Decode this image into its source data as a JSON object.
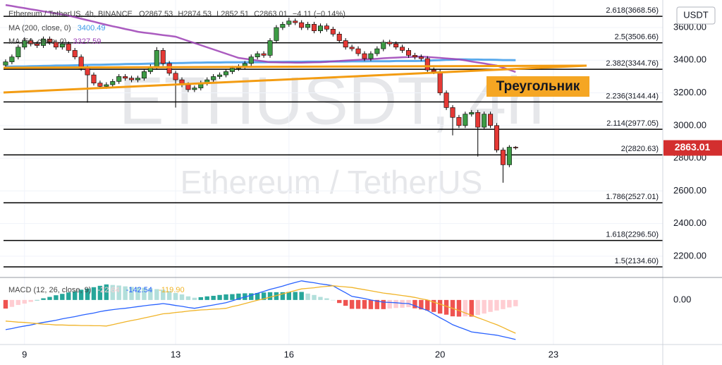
{
  "chart_data": [
    {
      "type": "candlestick",
      "title": "Ethereum / TetherUS, 4h, BINANCE",
      "ohlc_labels": [
        "O2867.53",
        "H2874.53",
        "L2852.51",
        "C2863.01",
        "−4.11 (−0.14%)"
      ],
      "watermark_symbol": "ETHUSDT, 4h",
      "watermark_name": "Ethereum / TetherUS",
      "unit": "USDT",
      "annotation": "Треугольник",
      "up_color": "#3d9b45",
      "down_color": "#e53935",
      "wick_color": "#000000",
      "grid": true,
      "ylim": [
        2070,
        3747
      ],
      "yticks": [
        {
          "value": 2200,
          "label": "2200.00"
        },
        {
          "value": 2400,
          "label": "2400.00"
        },
        {
          "value": 2600,
          "label": "2600.00"
        },
        {
          "value": 2800,
          "label": "2800.00"
        },
        {
          "value": 3000,
          "label": "3000.00"
        },
        {
          "value": 3200,
          "label": "3200.00"
        },
        {
          "value": 3400,
          "label": "3400.00"
        },
        {
          "value": 3600,
          "label": "3600.00"
        }
      ],
      "categories": [
        null,
        null,
        null,
        "9",
        null,
        null,
        null,
        null,
        null,
        null,
        null,
        null,
        null,
        null,
        null,
        null,
        null,
        null,
        null,
        null,
        null,
        null,
        null,
        null,
        null,
        null,
        null,
        "13",
        null,
        null,
        null,
        null,
        null,
        null,
        null,
        null,
        null,
        null,
        null,
        null,
        null,
        null,
        null,
        null,
        null,
        "16",
        null,
        null,
        null,
        null,
        null,
        null,
        null,
        null,
        null,
        null,
        null,
        null,
        null,
        null,
        null,
        null,
        null,
        null,
        null,
        null,
        null,
        null,
        null,
        "20",
        null,
        null,
        null,
        null,
        null,
        null,
        null,
        null,
        null,
        null,
        null,
        null,
        null,
        null,
        null,
        null,
        null,
        "23",
        null,
        null,
        null,
        null,
        null,
        null,
        null,
        null,
        null,
        null,
        null,
        null,
        null,
        null,
        null,
        null,
        null
      ],
      "open": [
        3370,
        3390,
        3420,
        3480,
        3520,
        3500,
        3490,
        3530,
        3510,
        3480,
        3500,
        3460,
        3420,
        3350,
        3310,
        3260,
        3240,
        3250,
        3270,
        3300,
        3290,
        3280,
        3290,
        3330,
        3360,
        3460,
        3380,
        3320,
        3280,
        3250,
        3220,
        3230,
        3260,
        3280,
        3300,
        3310,
        3330,
        3350,
        3360,
        3380,
        3420,
        3440,
        3430,
        3520,
        3600,
        3620,
        3640,
        3630,
        3600,
        3620,
        3580,
        3610,
        3590,
        3560,
        3520,
        3480,
        3470,
        3440,
        3410,
        3440,
        3470,
        3510,
        3500,
        3480,
        3460,
        3430,
        3420,
        3410,
        3340,
        3330,
        3200,
        3110,
        3050,
        3000,
        3070,
        3080,
        2990,
        3070,
        3000,
        2850,
        2760,
        2867.53,
        null,
        null,
        null,
        null,
        null,
        null,
        null,
        null,
        null,
        null,
        null,
        null,
        null,
        null,
        null,
        null,
        null,
        null,
        null,
        null,
        null,
        null,
        null
      ],
      "high": [
        3405,
        3435,
        3495,
        3540,
        3535,
        3515,
        3545,
        3545,
        3525,
        3515,
        3515,
        3475,
        3435,
        3365,
        3325,
        3275,
        3265,
        3285,
        3315,
        3315,
        3305,
        3305,
        3345,
        3375,
        3480,
        3475,
        3395,
        3335,
        3295,
        3265,
        3245,
        3275,
        3295,
        3315,
        3325,
        3345,
        3365,
        3375,
        3395,
        3435,
        3455,
        3455,
        3535,
        3615,
        3635,
        3660,
        3655,
        3645,
        3635,
        3635,
        3625,
        3625,
        3605,
        3575,
        3535,
        3495,
        3485,
        3455,
        3455,
        3485,
        3525,
        3525,
        3515,
        3495,
        3475,
        3445,
        3435,
        3425,
        3355,
        3345,
        3215,
        3125,
        3065,
        3085,
        3095,
        3095,
        3085,
        3085,
        3015,
        2865,
        2880,
        2874.53,
        null,
        null,
        null,
        null,
        null,
        null,
        null,
        null,
        null,
        null,
        null,
        null,
        null,
        null,
        null,
        null,
        null,
        null,
        null,
        null,
        null,
        null,
        null
      ],
      "low": [
        3355,
        3375,
        3405,
        3465,
        3485,
        3475,
        3475,
        3495,
        3465,
        3465,
        3445,
        3405,
        3335,
        3140,
        3245,
        3225,
        3225,
        3235,
        3255,
        3275,
        3265,
        3265,
        3275,
        3315,
        3345,
        3365,
        3305,
        3110,
        3235,
        3205,
        3205,
        3215,
        3245,
        3265,
        3285,
        3295,
        3315,
        3335,
        3345,
        3365,
        3405,
        3415,
        3415,
        3505,
        3585,
        3605,
        3615,
        3585,
        3585,
        3565,
        3565,
        3575,
        3545,
        3505,
        3465,
        3455,
        3425,
        3395,
        3395,
        3425,
        3455,
        3485,
        3465,
        3445,
        3415,
        3405,
        3395,
        3325,
        3315,
        3185,
        3095,
        2940,
        2985,
        2985,
        3055,
        2810,
        2975,
        2985,
        2835,
        2650,
        2745,
        2852.51,
        null,
        null,
        null,
        null,
        null,
        null,
        null,
        null,
        null,
        null,
        null,
        null,
        null,
        null,
        null,
        null,
        null,
        null,
        null,
        null,
        null,
        null,
        null
      ],
      "close": [
        3390,
        3420,
        3480,
        3520,
        3500,
        3490,
        3530,
        3510,
        3480,
        3500,
        3460,
        3420,
        3350,
        3310,
        3260,
        3240,
        3250,
        3270,
        3300,
        3290,
        3280,
        3290,
        3330,
        3360,
        3460,
        3380,
        3320,
        3280,
        3250,
        3220,
        3230,
        3260,
        3280,
        3300,
        3310,
        3330,
        3350,
        3360,
        3380,
        3420,
        3440,
        3430,
        3520,
        3600,
        3620,
        3640,
        3630,
        3600,
        3620,
        3580,
        3610,
        3590,
        3560,
        3520,
        3480,
        3470,
        3440,
        3410,
        3440,
        3470,
        3510,
        3500,
        3480,
        3460,
        3430,
        3420,
        3410,
        3340,
        3330,
        3200,
        3110,
        3050,
        3000,
        3070,
        3080,
        2990,
        3070,
        3000,
        2850,
        2760,
        2867.53,
        2863.01,
        null,
        null,
        null,
        null,
        null,
        null,
        null,
        null,
        null,
        null,
        null,
        null,
        null,
        null,
        null,
        null,
        null,
        null,
        null,
        null,
        null,
        null,
        null
      ],
      "series": [
        {
          "name": "MA (200, close, 0)",
          "color": "#3d9be9",
          "values": [
            3360,
            3361,
            3362,
            3362,
            3363,
            3364,
            3365,
            3366,
            3367,
            3367,
            3368,
            3369,
            3370,
            3371,
            3372,
            3372,
            3373,
            3374,
            3375,
            3376,
            3377,
            3377,
            3378,
            3379,
            3380,
            3381,
            3382,
            3382,
            3383,
            3384,
            3385,
            3385,
            3386,
            3386,
            3386,
            3387,
            3387,
            3387,
            3388,
            3388,
            3388,
            3388,
            3389,
            3389,
            3389,
            3390,
            3390,
            3390,
            3391,
            3391,
            3391,
            3392,
            3392,
            3392,
            3392,
            3393,
            3393,
            3393,
            3394,
            3394,
            3394,
            3394,
            3395,
            3395,
            3395,
            3395,
            3396,
            3397,
            3399,
            3400,
            3402,
            3403,
            3405,
            3405,
            3404,
            3404,
            3403,
            3403,
            3402,
            3401,
            3401,
            3400.49,
            null,
            null,
            null,
            null,
            null,
            null,
            null,
            null,
            null,
            null,
            null,
            null,
            null,
            null,
            null,
            null,
            null,
            null,
            null,
            null,
            null,
            null,
            null
          ]
        },
        {
          "name": "MA (50, close, 0)",
          "color": "#9c3fb5",
          "values": [
            3738,
            3732,
            3725,
            3719,
            3712,
            3706,
            3699,
            3693,
            3686,
            3680,
            3673,
            3664,
            3654,
            3645,
            3636,
            3626,
            3617,
            3608,
            3600,
            3591,
            3583,
            3574,
            3569,
            3564,
            3559,
            3554,
            3549,
            3544,
            3531,
            3518,
            3505,
            3492,
            3479,
            3466,
            3453,
            3440,
            3427,
            3414,
            3409,
            3404,
            3398,
            3393,
            3388,
            3387,
            3386,
            3386,
            3385,
            3385,
            3386,
            3387,
            3388,
            3390,
            3393,
            3395,
            3398,
            3400,
            3402,
            3405,
            3407,
            3409,
            3412,
            3414,
            3416,
            3418,
            3419,
            3421,
            3423,
            3420,
            3417,
            3414,
            3411,
            3408,
            3405,
            3399,
            3392,
            3386,
            3380,
            3373,
            3367,
            3354,
            3341,
            3327.59,
            null,
            null,
            null,
            null,
            null,
            null,
            null,
            null,
            null,
            null,
            null,
            null,
            null,
            null,
            null,
            null,
            null,
            null,
            null,
            null,
            null,
            null,
            null
          ]
        }
      ],
      "fib_levels": [
        {
          "value": 3668.56,
          "label": "2.618(3668.56)"
        },
        {
          "value": 3506.66,
          "label": "2.5(3506.66)"
        },
        {
          "value": 3344.76,
          "label": "2.382(3344.76)"
        },
        {
          "value": 3144.44,
          "label": "2.236(3144.44)"
        },
        {
          "value": 2977.05,
          "label": "2.114(2977.05)"
        },
        {
          "value": 2820.63,
          "label": "2(2820.63)"
        },
        {
          "value": 2527.01,
          "label": "1.786(2527.01)"
        },
        {
          "value": 2296.5,
          "label": "1.618(2296.50)"
        },
        {
          "value": 2134.6,
          "label": "1.5(2134.60)"
        }
      ],
      "last_price_color": "#d32f2f"
    },
    {
      "type": "macd",
      "title": "MACD (12, 26, close, 9)",
      "legend_values": [
        "-22.64",
        "-142.54",
        "-119.90"
      ],
      "ylim": [
        -158,
        76
      ],
      "yticks": [
        {
          "value": 0,
          "label": "0.00"
        }
      ],
      "histogram_colors": [
        "#26a69a",
        "#b2dfdb",
        "#ffcdd2",
        "#ef5350"
      ],
      "histogram": [
        -31,
        -25,
        -18,
        -13,
        -7,
        0,
        6,
        11,
        17,
        22,
        27,
        31,
        37,
        41,
        46,
        51,
        56,
        54,
        52,
        49,
        47,
        46,
        44,
        42,
        39,
        37,
        32,
        25,
        20,
        13,
        8,
        10,
        13,
        15,
        18,
        20,
        21,
        23,
        24,
        24,
        25,
        27,
        28,
        28,
        28,
        29,
        29,
        29,
        23,
        18,
        11,
        6,
        0,
        -11,
        -21,
        -32,
        -32,
        -32,
        -33,
        -33,
        -33,
        -31,
        -29,
        -28,
        -26,
        -30,
        -34,
        -38,
        -43,
        -49,
        -53,
        -59,
        -60,
        -59,
        -60,
        -54,
        -49,
        -43,
        -38,
        -33,
        -27,
        -22.64,
        null,
        null,
        null,
        null,
        null,
        null,
        null,
        null,
        null,
        null,
        null,
        null,
        null,
        null,
        null,
        null,
        null,
        null,
        null,
        null,
        null,
        null,
        null
      ],
      "series": [
        {
          "color": "#2962ff",
          "values": [
            -107,
            -103,
            -98,
            -94,
            -90,
            -85,
            -81,
            -77,
            -73,
            -68,
            -64,
            -60,
            -55,
            -51,
            -47,
            -42,
            -38,
            -35,
            -32,
            -30,
            -27,
            -24,
            -21,
            -18,
            -16,
            -13,
            -16,
            -20,
            -23,
            -27,
            -30,
            -26,
            -22,
            -18,
            -14,
            -10,
            -3,
            4,
            11,
            17,
            24,
            31,
            38,
            44,
            50,
            57,
            63,
            69,
            65,
            62,
            58,
            55,
            51,
            38,
            26,
            13,
            9,
            5,
            0,
            -4,
            -8,
            -9,
            -10,
            -12,
            -13,
            -21,
            -30,
            -38,
            -51,
            -64,
            -76,
            -89,
            -98,
            -106,
            -115,
            -118,
            -121,
            -124,
            -127,
            -132,
            -137,
            -142.54,
            null,
            null,
            null,
            null,
            null,
            null,
            null,
            null,
            null,
            null,
            null,
            null,
            null,
            null,
            null,
            null,
            null,
            null,
            null,
            null,
            null,
            null,
            null
          ]
        },
        {
          "color": "#f0b429",
          "values": [
            -76,
            -78,
            -80,
            -81,
            -83,
            -85,
            -87,
            -88,
            -90,
            -90,
            -91,
            -91,
            -92,
            -92,
            -93,
            -93,
            -94,
            -89,
            -84,
            -79,
            -74,
            -70,
            -65,
            -60,
            -55,
            -50,
            -48,
            -45,
            -43,
            -40,
            -38,
            -36,
            -35,
            -33,
            -32,
            -30,
            -24,
            -19,
            -13,
            -7,
            -1,
            4,
            10,
            16,
            22,
            28,
            34,
            40,
            42,
            44,
            47,
            49,
            51,
            49,
            47,
            45,
            41,
            37,
            33,
            29,
            25,
            22,
            19,
            16,
            13,
            9,
            4,
            0,
            -8,
            -15,
            -23,
            -30,
            -38,
            -47,
            -55,
            -64,
            -72,
            -81,
            -89,
            -99,
            -110,
            -119.9,
            null,
            null,
            null,
            null,
            null,
            null,
            null,
            null,
            null,
            null,
            null,
            null,
            null,
            null,
            null,
            null,
            null,
            null,
            null,
            null,
            null,
            null,
            null
          ]
        }
      ]
    }
  ]
}
